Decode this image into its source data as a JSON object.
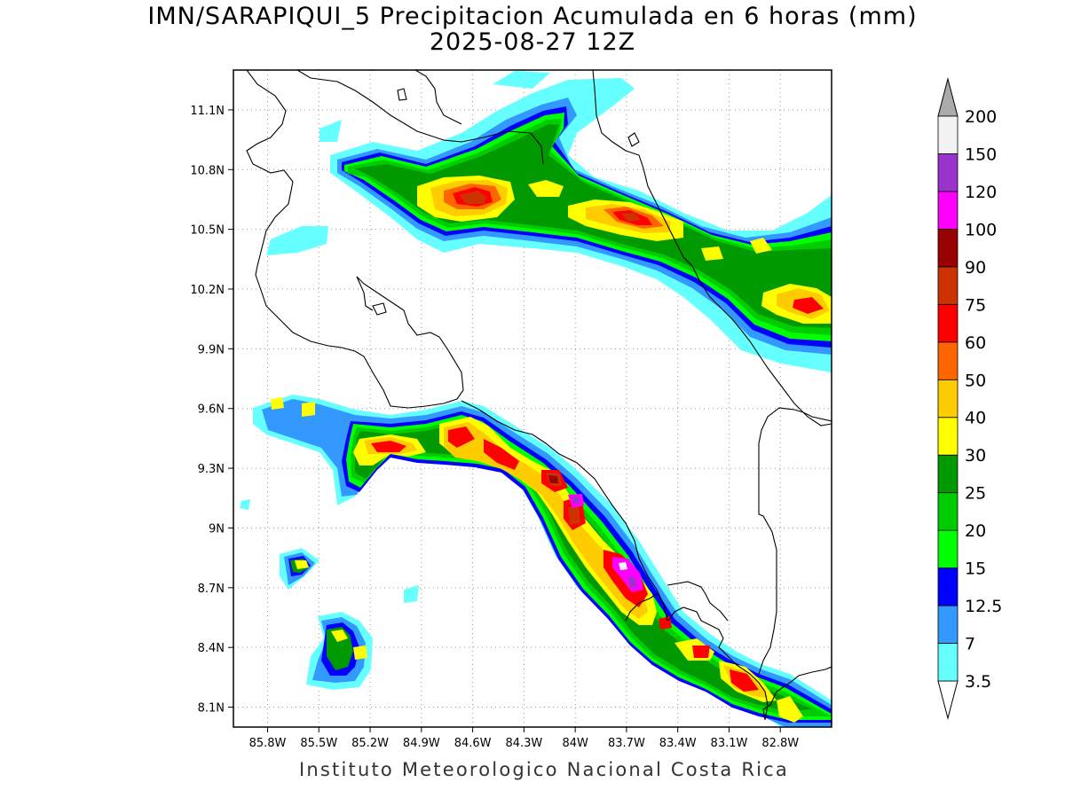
{
  "title": {
    "line1": "IMN/SARAPIQUI_5 Precipitacion Acumulada en 6 horas (mm)",
    "line2": "2025-08-27 12Z"
  },
  "footer": "Instituto Meteorologico Nacional Costa Rica",
  "map": {
    "lon_range": [
      -86.0,
      -82.5
    ],
    "lat_range": [
      8.0,
      11.3
    ],
    "x_ticks": [
      "85.8W",
      "85.5W",
      "85.2W",
      "84.9W",
      "84.6W",
      "84.3W",
      "84W",
      "83.7W",
      "83.4W",
      "83.1W",
      "82.8W"
    ],
    "x_tick_values": [
      -85.8,
      -85.5,
      -85.2,
      -84.9,
      -84.6,
      -84.3,
      -84.0,
      -83.7,
      -83.4,
      -83.1,
      -82.8
    ],
    "y_ticks": [
      "8.1N",
      "8.4N",
      "8.7N",
      "9N",
      "9.3N",
      "9.6N",
      "9.9N",
      "10.2N",
      "10.5N",
      "10.8N",
      "11.1N"
    ],
    "y_tick_values": [
      8.1,
      8.4,
      8.7,
      9.0,
      9.3,
      9.6,
      9.9,
      10.2,
      10.5,
      10.8,
      11.1
    ],
    "grid": "dotted"
  },
  "colorbar": {
    "labels": [
      "3.5",
      "7",
      "12.5",
      "15",
      "20",
      "25",
      "30",
      "40",
      "50",
      "60",
      "75",
      "90",
      "100",
      "120",
      "150",
      "200"
    ],
    "colors": [
      "#66ffff",
      "#3399ff",
      "#0000ff",
      "#00ff00",
      "#00cc00",
      "#009900",
      "#ffff00",
      "#ffcc00",
      "#ff6600",
      "#ff0000",
      "#cc3300",
      "#990000",
      "#ff00ff",
      "#9933cc",
      "#f2f2f2",
      "#aaaaaa"
    ]
  }
}
